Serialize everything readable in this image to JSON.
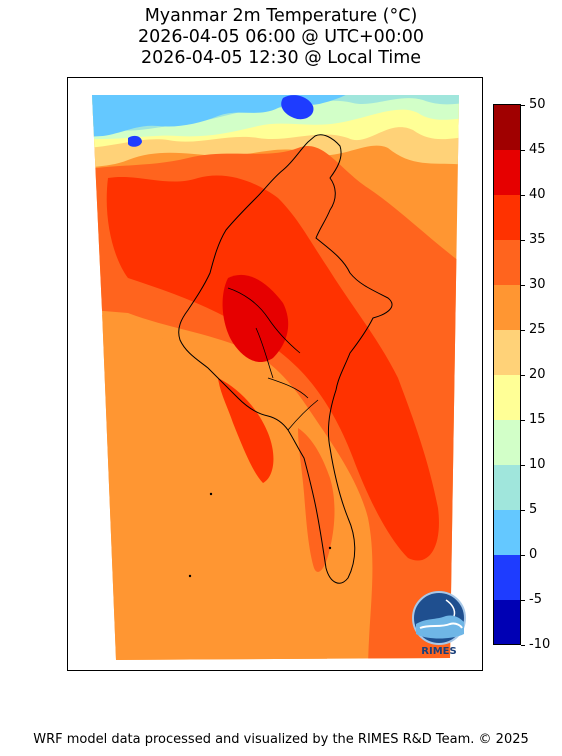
{
  "title": {
    "line1": "Myanmar 2m Temperature (°C)",
    "line2": "2026-04-05 06:00 @ UTC+00:00",
    "line3": "2026-04-05 12:30 @ Local Time"
  },
  "colorbar": {
    "ticks": [
      "50",
      "45",
      "40",
      "35",
      "30",
      "25",
      "20",
      "15",
      "10",
      "5",
      "0",
      "-5",
      "-10"
    ],
    "levels": [
      {
        "from": -10,
        "to": -5,
        "color": "#0000b4"
      },
      {
        "from": -5,
        "to": 0,
        "color": "#1e3cff"
      },
      {
        "from": 0,
        "to": 5,
        "color": "#64c8ff"
      },
      {
        "from": 5,
        "to": 10,
        "color": "#a0e6dc"
      },
      {
        "from": 10,
        "to": 15,
        "color": "#d2ffc8"
      },
      {
        "from": 15,
        "to": 20,
        "color": "#ffff96"
      },
      {
        "from": 20,
        "to": 25,
        "color": "#ffd278"
      },
      {
        "from": 25,
        "to": 30,
        "color": "#ff9632"
      },
      {
        "from": 30,
        "to": 35,
        "color": "#ff641e"
      },
      {
        "from": 35,
        "to": 40,
        "color": "#ff3200"
      },
      {
        "from": 40,
        "to": 45,
        "color": "#e60000"
      },
      {
        "from": 45,
        "to": 50,
        "color": "#a00000"
      }
    ]
  },
  "logo": {
    "text": "RIMES",
    "icon": "rimes-globe-logo"
  },
  "footer": {
    "text": "WRF model data processed and visualized by the RIMES R&D Team. © 2025"
  }
}
